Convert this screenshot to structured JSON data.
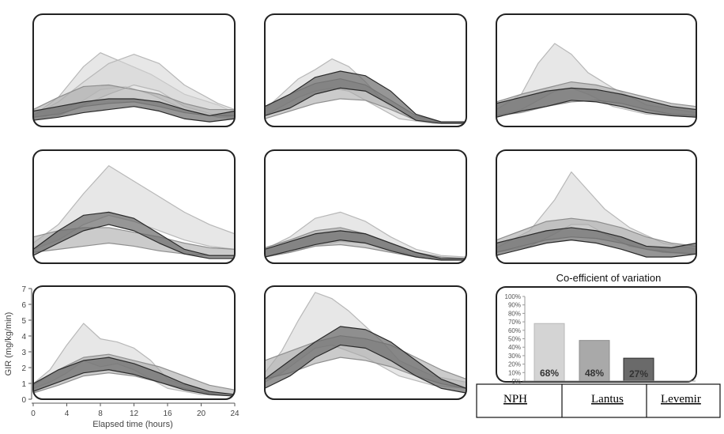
{
  "colors": {
    "frame": "#222222",
    "nph": "#d4d4d4",
    "nph_stroke": "#b8b8b8",
    "lantus": "#a9a9a9",
    "lantus_stroke": "#8e8e8e",
    "levemir": "#6a6a6a",
    "levemir_stroke": "#2a2a2a",
    "axis": "#555555"
  },
  "axis": {
    "ylabel": "GIR (mg/kg/min)",
    "xlabel": "Elapsed time (hours)",
    "yticks": [
      "0",
      "1",
      "2",
      "3",
      "4",
      "5",
      "6",
      "7"
    ],
    "xticks": [
      "0",
      "4",
      "8",
      "12",
      "16",
      "20",
      "24"
    ]
  },
  "bar_chart": {
    "title": "Co-efficient of variation",
    "yticks": [
      "0%",
      "10%",
      "20%",
      "30%",
      "40%",
      "50%",
      "60%",
      "70%",
      "80%",
      "90%",
      "100%"
    ],
    "labels": [
      "68%",
      "48%",
      "27%"
    ],
    "categories": [
      "NPH",
      "Lantus",
      "Levemir"
    ]
  },
  "chart_data": [
    {
      "type": "area",
      "panel": "row1-col1",
      "xlim": [
        0,
        24
      ],
      "ylim": [
        0,
        7
      ],
      "series": [
        {
          "group": "NPH",
          "x": [
            0,
            3,
            6,
            8,
            11,
            14,
            18,
            22,
            24
          ],
          "lower": [
            0.3,
            0.8,
            1.6,
            2.3,
            2.5,
            2.0,
            1.0,
            0.5,
            0.4
          ],
          "upper": [
            0.6,
            1.8,
            3.8,
            4.7,
            4.0,
            3.3,
            2.0,
            1.3,
            0.8
          ]
        },
        {
          "group": "NPH",
          "x": [
            0,
            3,
            6,
            9,
            12,
            15,
            18,
            22,
            24
          ],
          "lower": [
            0.3,
            0.6,
            1.3,
            2.0,
            2.6,
            2.2,
            1.2,
            0.6,
            0.5
          ],
          "upper": [
            0.6,
            1.5,
            2.8,
            4.0,
            4.6,
            4.0,
            2.6,
            1.4,
            1.0
          ]
        },
        {
          "group": "Lantus",
          "x": [
            0,
            3,
            6,
            9,
            12,
            15,
            18,
            21,
            24
          ],
          "lower": [
            0.5,
            0.7,
            1.2,
            1.4,
            1.5,
            1.2,
            0.8,
            0.6,
            0.6
          ],
          "upper": [
            1.0,
            1.8,
            2.5,
            2.6,
            2.3,
            2.0,
            1.4,
            1.0,
            1.0
          ]
        },
        {
          "group": "Levemir",
          "x": [
            0,
            3,
            6,
            9,
            12,
            15,
            18,
            21,
            24
          ],
          "lower": [
            0.3,
            0.5,
            0.8,
            1.0,
            1.2,
            0.9,
            0.4,
            0.2,
            0.4
          ],
          "upper": [
            0.9,
            1.2,
            1.5,
            1.7,
            1.7,
            1.5,
            1.0,
            0.6,
            0.9
          ]
        }
      ]
    },
    {
      "type": "area",
      "panel": "row1-col2",
      "xlim": [
        0,
        24
      ],
      "ylim": [
        0,
        7
      ],
      "series": [
        {
          "group": "NPH",
          "x": [
            0,
            2,
            4,
            6,
            8,
            10,
            12,
            14,
            16,
            20,
            24
          ],
          "lower": [
            0.6,
            1.2,
            1.8,
            2.2,
            2.4,
            2.2,
            1.6,
            1.0,
            0.4,
            0.1,
            0.1
          ],
          "upper": [
            1.0,
            2.0,
            3.0,
            3.6,
            4.3,
            3.8,
            2.8,
            1.6,
            0.8,
            0.2,
            0.2
          ]
        },
        {
          "group": "Lantus",
          "x": [
            0,
            3,
            6,
            9,
            12,
            15,
            18,
            21,
            24
          ],
          "lower": [
            0.4,
            0.9,
            1.4,
            1.7,
            1.6,
            1.0,
            0.3,
            0.1,
            0.1
          ],
          "upper": [
            1.2,
            2.0,
            2.7,
            3.0,
            2.6,
            1.6,
            0.6,
            0.2,
            0.2
          ]
        },
        {
          "group": "Levemir",
          "x": [
            0,
            3,
            6,
            9,
            12,
            15,
            18,
            21,
            24
          ],
          "lower": [
            0.6,
            1.1,
            2.0,
            2.4,
            2.2,
            1.3,
            0.3,
            0.1,
            0.1
          ],
          "upper": [
            1.2,
            2.0,
            3.1,
            3.5,
            3.2,
            2.2,
            0.7,
            0.2,
            0.2
          ]
        }
      ]
    },
    {
      "type": "area",
      "panel": "row1-col3",
      "xlim": [
        0,
        24
      ],
      "ylim": [
        0,
        7
      ],
      "series": [
        {
          "group": "NPH",
          "x": [
            0,
            3,
            5,
            7,
            9,
            11,
            14,
            18,
            24
          ],
          "lower": [
            0.6,
            1.0,
            1.6,
            2.2,
            2.4,
            2.0,
            1.2,
            0.7,
            0.5
          ],
          "upper": [
            1.0,
            2.0,
            4.0,
            5.3,
            4.6,
            3.4,
            2.4,
            1.3,
            0.8
          ]
        },
        {
          "group": "Lantus",
          "x": [
            0,
            3,
            6,
            9,
            12,
            15,
            18,
            21,
            24
          ],
          "lower": [
            0.6,
            0.8,
            1.2,
            1.5,
            1.6,
            1.4,
            1.0,
            0.7,
            0.6
          ],
          "upper": [
            1.5,
            2.0,
            2.4,
            2.8,
            2.6,
            2.2,
            1.8,
            1.4,
            1.2
          ]
        },
        {
          "group": "Levemir",
          "x": [
            0,
            3,
            6,
            9,
            12,
            15,
            18,
            21,
            24
          ],
          "lower": [
            0.5,
            0.9,
            1.2,
            1.6,
            1.5,
            1.2,
            0.8,
            0.6,
            0.5
          ],
          "upper": [
            1.4,
            1.8,
            2.2,
            2.4,
            2.3,
            2.0,
            1.6,
            1.2,
            1.0
          ]
        }
      ]
    },
    {
      "type": "area",
      "panel": "row2-col1",
      "xlim": [
        0,
        24
      ],
      "ylim": [
        0,
        7
      ],
      "series": [
        {
          "group": "NPH",
          "x": [
            0,
            3,
            6,
            9,
            12,
            15,
            18,
            21,
            24
          ],
          "lower": [
            0.8,
            1.4,
            2.4,
            3.0,
            2.6,
            2.0,
            1.4,
            1.0,
            0.8
          ],
          "upper": [
            1.2,
            2.4,
            4.4,
            6.2,
            5.2,
            4.2,
            3.2,
            2.4,
            1.8
          ]
        },
        {
          "group": "Lantus",
          "x": [
            0,
            3,
            6,
            9,
            12,
            15,
            18,
            21,
            24
          ],
          "lower": [
            0.6,
            0.8,
            1.0,
            1.2,
            1.0,
            0.7,
            0.5,
            0.4,
            0.4
          ],
          "upper": [
            1.6,
            2.0,
            2.2,
            2.2,
            1.9,
            1.6,
            1.2,
            0.9,
            0.8
          ]
        },
        {
          "group": "Levemir",
          "x": [
            0,
            3,
            6,
            9,
            12,
            15,
            18,
            21,
            24
          ],
          "lower": [
            0.4,
            1.2,
            2.0,
            2.4,
            2.0,
            1.2,
            0.5,
            0.2,
            0.2
          ],
          "upper": [
            0.8,
            2.0,
            3.0,
            3.2,
            2.8,
            1.8,
            0.8,
            0.4,
            0.4
          ]
        }
      ]
    },
    {
      "type": "area",
      "panel": "row2-col2",
      "xlim": [
        0,
        24
      ],
      "ylim": [
        0,
        7
      ],
      "series": [
        {
          "group": "NPH",
          "x": [
            0,
            3,
            6,
            9,
            12,
            15,
            18,
            21,
            24
          ],
          "lower": [
            0.3,
            0.6,
            1.0,
            1.3,
            1.2,
            0.8,
            0.4,
            0.2,
            0.2
          ],
          "upper": [
            0.8,
            1.6,
            2.8,
            3.2,
            2.6,
            1.6,
            0.8,
            0.4,
            0.3
          ]
        },
        {
          "group": "Lantus",
          "x": [
            0,
            3,
            6,
            9,
            12,
            15,
            18,
            21,
            24
          ],
          "lower": [
            0.3,
            0.6,
            1.0,
            1.1,
            0.9,
            0.6,
            0.3,
            0.1,
            0.1
          ],
          "upper": [
            0.9,
            1.4,
            2.0,
            2.2,
            1.8,
            1.2,
            0.6,
            0.3,
            0.2
          ]
        },
        {
          "group": "Levemir",
          "x": [
            0,
            3,
            6,
            9,
            12,
            15,
            18,
            21,
            24
          ],
          "lower": [
            0.3,
            0.7,
            1.1,
            1.4,
            1.2,
            0.7,
            0.3,
            0.1,
            0.1
          ],
          "upper": [
            0.8,
            1.3,
            1.8,
            2.0,
            1.8,
            1.2,
            0.6,
            0.2,
            0.2
          ]
        }
      ]
    },
    {
      "type": "area",
      "panel": "row2-col3",
      "xlim": [
        0,
        24
      ],
      "ylim": [
        0,
        7
      ],
      "series": [
        {
          "group": "NPH",
          "x": [
            0,
            4,
            7,
            9,
            11,
            13,
            16,
            20,
            24
          ],
          "lower": [
            0.6,
            1.0,
            1.8,
            2.4,
            2.4,
            1.8,
            1.0,
            0.6,
            0.5
          ],
          "upper": [
            0.9,
            2.0,
            4.0,
            5.8,
            4.6,
            3.4,
            2.2,
            1.2,
            0.8
          ]
        },
        {
          "group": "Lantus",
          "x": [
            0,
            3,
            6,
            9,
            12,
            15,
            18,
            21,
            24
          ],
          "lower": [
            0.6,
            1.0,
            1.4,
            1.6,
            1.5,
            1.2,
            0.8,
            0.6,
            0.5
          ],
          "upper": [
            1.4,
            2.0,
            2.6,
            2.8,
            2.6,
            2.2,
            1.6,
            1.2,
            1.0
          ]
        },
        {
          "group": "Levemir",
          "x": [
            0,
            3,
            6,
            9,
            12,
            15,
            18,
            21,
            24
          ],
          "lower": [
            0.4,
            0.8,
            1.2,
            1.4,
            1.2,
            0.8,
            0.3,
            0.3,
            0.5
          ],
          "upper": [
            1.2,
            1.6,
            2.0,
            2.2,
            2.0,
            1.6,
            1.0,
            0.9,
            1.2
          ]
        }
      ]
    },
    {
      "type": "area",
      "panel": "row3-col1",
      "xlim": [
        0,
        24
      ],
      "ylim": [
        0,
        7
      ],
      "xlabel": "Elapsed time (hours)",
      "ylabel": "GIR (mg/kg/min)",
      "series": [
        {
          "group": "NPH",
          "x": [
            0,
            2,
            4,
            6,
            8,
            10,
            12,
            14,
            16,
            20,
            24
          ],
          "lower": [
            0.6,
            1.0,
            1.6,
            2.4,
            2.0,
            2.2,
            1.8,
            1.2,
            0.6,
            0.2,
            0.1
          ],
          "upper": [
            0.9,
            1.8,
            3.4,
            4.8,
            3.8,
            3.6,
            3.2,
            2.4,
            1.2,
            0.4,
            0.2
          ]
        },
        {
          "group": "Lantus",
          "x": [
            0,
            3,
            6,
            9,
            12,
            15,
            18,
            21,
            24
          ],
          "lower": [
            0.3,
            0.8,
            1.4,
            1.6,
            1.4,
            1.0,
            0.6,
            0.3,
            0.2
          ],
          "upper": [
            0.8,
            1.8,
            2.6,
            2.8,
            2.4,
            2.0,
            1.4,
            0.8,
            0.5
          ]
        },
        {
          "group": "Levemir",
          "x": [
            0,
            3,
            6,
            9,
            12,
            15,
            18,
            21,
            24
          ],
          "lower": [
            0.4,
            1.0,
            1.6,
            1.8,
            1.5,
            1.0,
            0.5,
            0.2,
            0.1
          ],
          "upper": [
            0.9,
            1.8,
            2.4,
            2.6,
            2.2,
            1.6,
            0.9,
            0.4,
            0.2
          ]
        }
      ]
    },
    {
      "type": "area",
      "panel": "row3-col2",
      "xlim": [
        0,
        24
      ],
      "ylim": [
        0,
        7
      ],
      "series": [
        {
          "group": "NPH",
          "x": [
            0,
            2,
            4,
            6,
            8,
            10,
            12,
            14,
            16,
            20,
            24
          ],
          "lower": [
            1.0,
            1.6,
            2.4,
            3.2,
            3.4,
            3.0,
            2.6,
            2.0,
            1.4,
            0.8,
            0.6
          ],
          "upper": [
            1.6,
            3.0,
            5.0,
            6.8,
            6.4,
            5.6,
            4.6,
            3.6,
            2.4,
            1.4,
            1.0
          ]
        },
        {
          "group": "Lantus",
          "x": [
            0,
            3,
            6,
            9,
            12,
            15,
            18,
            21,
            24
          ],
          "lower": [
            1.2,
            1.6,
            2.2,
            2.6,
            2.4,
            2.0,
            1.4,
            0.9,
            0.6
          ],
          "upper": [
            2.4,
            3.0,
            3.6,
            4.0,
            3.8,
            3.4,
            2.6,
            1.8,
            1.2
          ]
        },
        {
          "group": "Levemir",
          "x": [
            0,
            3,
            6,
            9,
            12,
            15,
            18,
            21,
            24
          ],
          "lower": [
            0.6,
            1.4,
            2.6,
            3.4,
            3.2,
            2.4,
            1.4,
            0.6,
            0.3
          ],
          "upper": [
            1.2,
            2.4,
            3.6,
            4.6,
            4.4,
            3.6,
            2.4,
            1.2,
            0.6
          ]
        }
      ]
    },
    {
      "type": "bar",
      "panel": "row3-col3",
      "title": "Co-efficient of variation",
      "categories": [
        "NPH",
        "Lantus",
        "Levemir"
      ],
      "values": [
        68,
        48,
        27
      ],
      "data_labels": [
        "68%",
        "48%",
        "27%"
      ],
      "ylim": [
        0,
        100
      ]
    }
  ]
}
